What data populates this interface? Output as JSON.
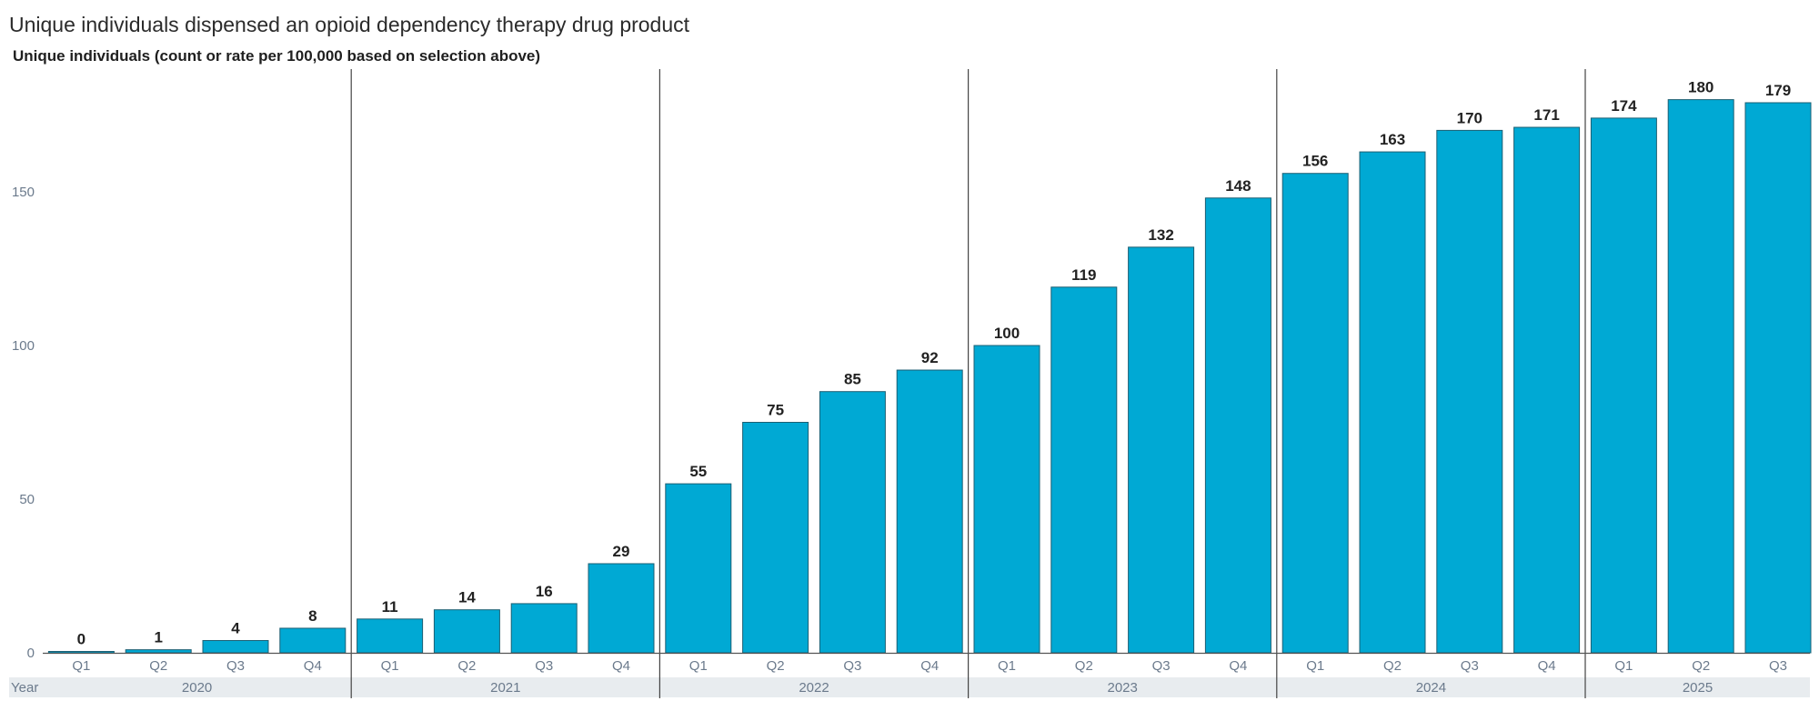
{
  "chart_data": {
    "type": "bar",
    "title": "Unique individuals dispensed an opioid dependency therapy drug product",
    "subtitle": "Unique individuals (count or rate per 100,000 based on selection above)",
    "xlabel": "Year",
    "ylabel": "",
    "ylim": [
      0,
      190
    ],
    "yticks": [
      0,
      50,
      100,
      150
    ],
    "grid": false,
    "bar_color": "#00a9d4",
    "groups": [
      {
        "year": "2020",
        "quarters": [
          "Q1",
          "Q2",
          "Q3",
          "Q4"
        ],
        "values": [
          0,
          1,
          4,
          8
        ]
      },
      {
        "year": "2021",
        "quarters": [
          "Q1",
          "Q2",
          "Q3",
          "Q4"
        ],
        "values": [
          11,
          14,
          16,
          29
        ]
      },
      {
        "year": "2022",
        "quarters": [
          "Q1",
          "Q2",
          "Q3",
          "Q4"
        ],
        "values": [
          55,
          75,
          85,
          92
        ]
      },
      {
        "year": "2023",
        "quarters": [
          "Q1",
          "Q2",
          "Q3",
          "Q4"
        ],
        "values": [
          100,
          119,
          132,
          148
        ]
      },
      {
        "year": "2024",
        "quarters": [
          "Q1",
          "Q2",
          "Q3",
          "Q4"
        ],
        "values": [
          156,
          163,
          170,
          171
        ]
      },
      {
        "year": "2025",
        "quarters": [
          "Q1",
          "Q2",
          "Q3"
        ],
        "values": [
          174,
          180,
          179
        ]
      }
    ]
  }
}
